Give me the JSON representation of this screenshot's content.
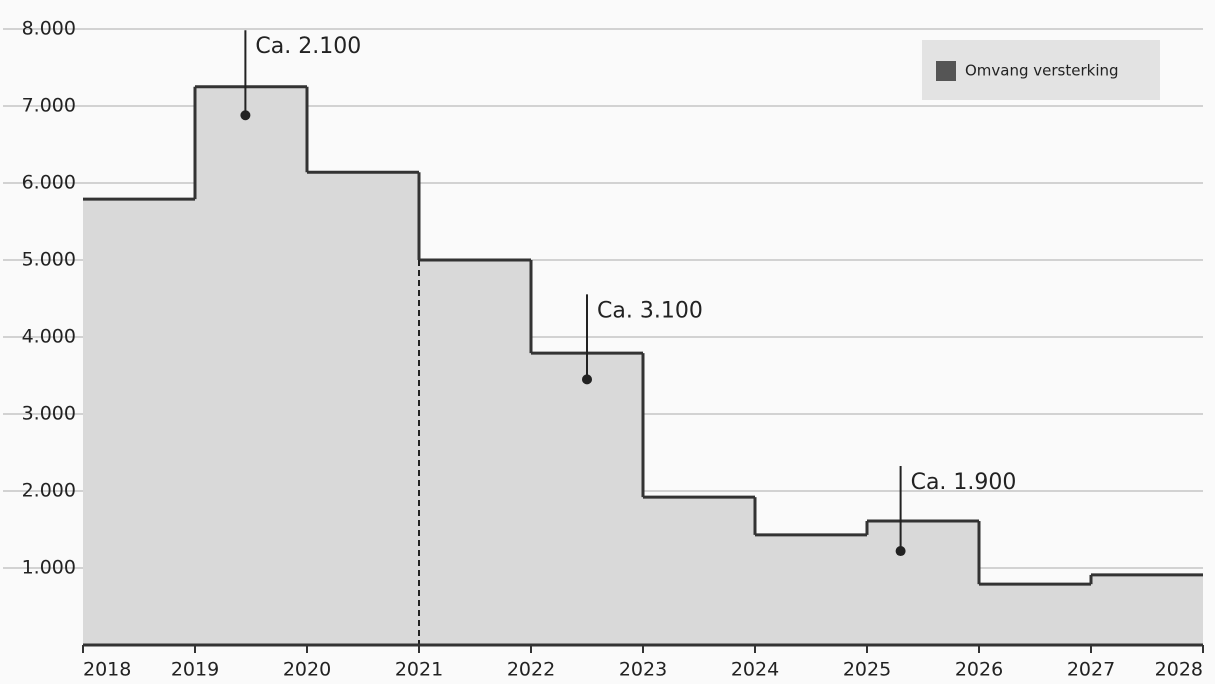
{
  "chart_data": {
    "type": "step-area",
    "x": [
      2018,
      2019,
      2020,
      2021,
      2022,
      2023,
      2024,
      2025,
      2026,
      2027
    ],
    "series": [
      {
        "name": "Omvang versterking",
        "color": "#d9d9d9",
        "line_color": "#333333",
        "values": [
          5790,
          7250,
          6140,
          5000,
          3790,
          1920,
          1430,
          1610,
          790,
          910
        ]
      }
    ],
    "xlim": [
      2018,
      2028
    ],
    "xticks": [
      2018,
      2019,
      2020,
      2021,
      2022,
      2023,
      2024,
      2025,
      2026,
      2027,
      2028
    ],
    "ylim": [
      0,
      8000
    ],
    "yticks": [
      {
        "value": 1000,
        "label": "1.000"
      },
      {
        "value": 2000,
        "label": "2.000"
      },
      {
        "value": 3000,
        "label": "3.000"
      },
      {
        "value": 4000,
        "label": "4.000"
      },
      {
        "value": 5000,
        "label": "5.000"
      },
      {
        "value": 6000,
        "label": "6.000"
      },
      {
        "value": 7000,
        "label": "7.000"
      },
      {
        "value": 8000,
        "label": "8.000"
      }
    ],
    "grid": true,
    "vline": 2021,
    "legend": "top-right",
    "annotations": [
      {
        "text": "Ca. 2.100",
        "x": 2019.45,
        "y": 6880
      },
      {
        "text": "Ca. 3.100",
        "x": 2022.5,
        "y": 3450
      },
      {
        "text": "Ca. 1.900",
        "x": 2025.3,
        "y": 1220
      }
    ]
  }
}
